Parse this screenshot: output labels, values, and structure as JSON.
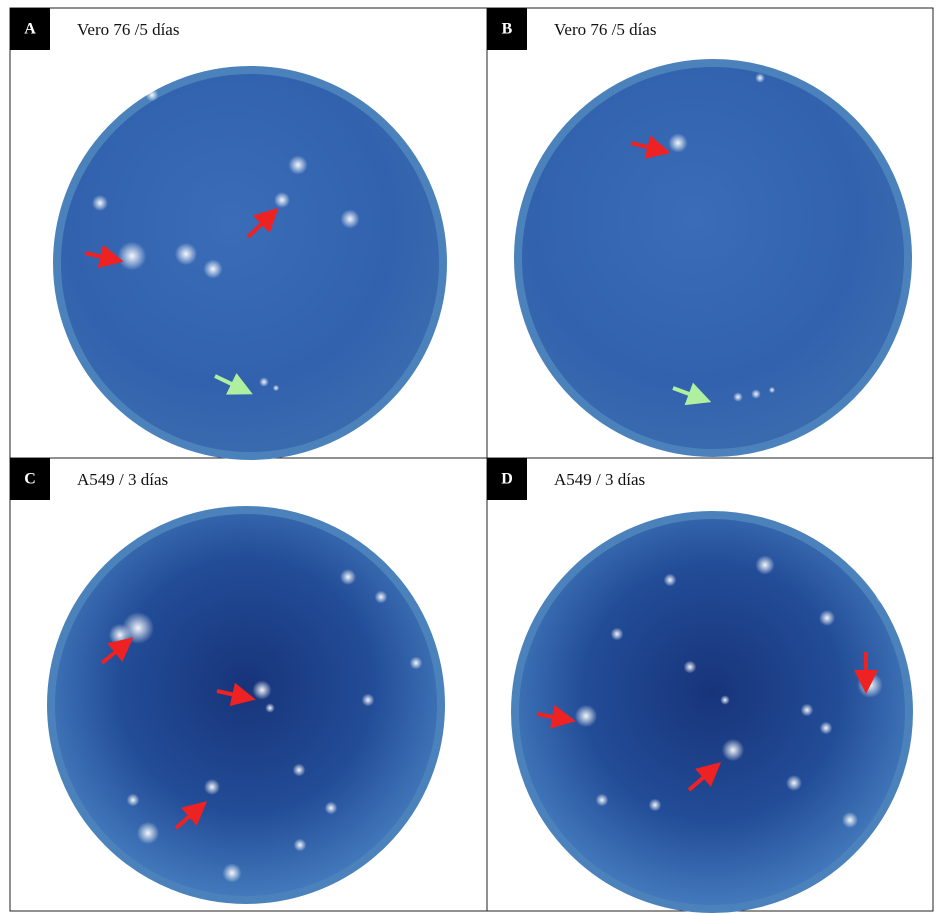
{
  "panels": [
    {
      "letter": "A",
      "caption": "Vero 76 /5 días"
    },
    {
      "letter": "B",
      "caption": "Vero 76 /5 días"
    },
    {
      "letter": "C",
      "caption": "A549 / 3 días"
    },
    {
      "letter": "D",
      "caption": "A549 / 3 días"
    }
  ]
}
